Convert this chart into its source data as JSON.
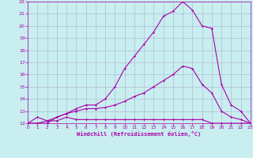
{
  "xlabel": "Windchill (Refroidissement éolien,°C)",
  "background_color": "#c8eef0",
  "grid_color": "#b0b0cc",
  "line_color": "#aa00aa",
  "xmin": 0,
  "xmax": 23,
  "ymin": 12,
  "ymax": 22,
  "line1_x": [
    0,
    1,
    2,
    3,
    4,
    5,
    6,
    7,
    8,
    9,
    10,
    11,
    12,
    13,
    14,
    15,
    16,
    17,
    18,
    19,
    20,
    21,
    22,
    23
  ],
  "line1_y": [
    12,
    12.5,
    12.2,
    12.2,
    12.5,
    12.3,
    12.3,
    12.3,
    12.3,
    12.3,
    12.3,
    12.3,
    12.3,
    12.3,
    12.3,
    12.3,
    12.3,
    12.3,
    12.3,
    12,
    12,
    12,
    12,
    12
  ],
  "line2_x": [
    0,
    1,
    2,
    3,
    4,
    5,
    6,
    7,
    8,
    9,
    10,
    11,
    12,
    13,
    14,
    15,
    16,
    17,
    18,
    19,
    20,
    21,
    22,
    23
  ],
  "line2_y": [
    12,
    12,
    12,
    12.5,
    12.8,
    13.0,
    13.2,
    13.2,
    13.3,
    13.5,
    13.8,
    14.2,
    14.5,
    15.0,
    15.5,
    16.0,
    16.7,
    16.5,
    15.2,
    14.5,
    13.0,
    12.5,
    12.3,
    12
  ],
  "line3_x": [
    0,
    1,
    2,
    3,
    4,
    5,
    6,
    7,
    8,
    9,
    10,
    11,
    12,
    13,
    14,
    15,
    16,
    17,
    18,
    19,
    20,
    21,
    22,
    23
  ],
  "line3_y": [
    12,
    12,
    12.2,
    12.5,
    12.8,
    13.2,
    13.5,
    13.5,
    14.0,
    15.0,
    16.5,
    17.5,
    18.5,
    19.5,
    20.8,
    21.2,
    22.0,
    21.3,
    20.0,
    19.8,
    15.2,
    13.5,
    13.0,
    12
  ]
}
